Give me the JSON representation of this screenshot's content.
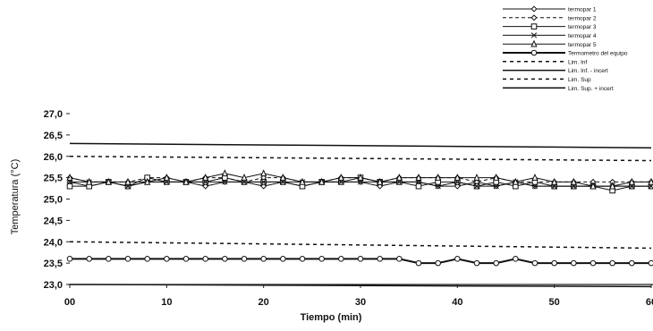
{
  "chart_data": {
    "type": "line",
    "xlabel": "Tiempo (min)",
    "ylabel": "Temperatura (°C)",
    "xlim": [
      0,
      60
    ],
    "ylim": [
      23.0,
      27.0
    ],
    "grid": false,
    "legend_position": "top-right",
    "x_ticks": [
      "00",
      "10",
      "20",
      "30",
      "40",
      "50",
      "60"
    ],
    "y_ticks": [
      "23,0",
      "23,5",
      "24,0",
      "24,5",
      "25,0",
      "25,5",
      "26,0",
      "26,5",
      "27,0"
    ],
    "x": [
      0,
      2,
      4,
      6,
      8,
      10,
      12,
      14,
      16,
      18,
      20,
      22,
      24,
      26,
      28,
      30,
      32,
      34,
      36,
      38,
      40,
      42,
      44,
      46,
      48,
      50,
      52,
      54,
      56,
      58,
      60
    ],
    "series": [
      {
        "name": "termopar 1",
        "marker": "diamond",
        "dash": "",
        "values": [
          25.4,
          25.3,
          25.4,
          25.3,
          25.4,
          25.4,
          25.4,
          25.3,
          25.4,
          25.4,
          25.3,
          25.4,
          25.3,
          25.4,
          25.4,
          25.4,
          25.3,
          25.4,
          25.4,
          25.3,
          25.3,
          25.4,
          25.3,
          25.4,
          25.3,
          25.3,
          25.3,
          25.3,
          25.3,
          25.3,
          25.3
        ]
      },
      {
        "name": "termopar 2",
        "marker": "diamond",
        "dash": "4,3",
        "values": [
          25.5,
          25.4,
          25.4,
          25.4,
          25.5,
          25.5,
          25.4,
          25.5,
          25.5,
          25.4,
          25.5,
          25.5,
          25.4,
          25.4,
          25.5,
          25.5,
          25.4,
          25.5,
          25.5,
          25.5,
          25.5,
          25.4,
          25.5,
          25.4,
          25.4,
          25.4,
          25.4,
          25.4,
          25.4,
          25.4,
          25.4
        ]
      },
      {
        "name": "termopar 3",
        "marker": "square",
        "dash": "",
        "values": [
          25.3,
          25.3,
          25.4,
          25.3,
          25.5,
          25.4,
          25.4,
          25.4,
          25.5,
          25.4,
          25.4,
          25.4,
          25.3,
          25.4,
          25.4,
          25.5,
          25.4,
          25.4,
          25.3,
          25.4,
          25.4,
          25.3,
          25.4,
          25.3,
          25.4,
          25.3,
          25.3,
          25.3,
          25.2,
          25.3,
          25.3
        ]
      },
      {
        "name": "termopar 4",
        "marker": "x",
        "dash": "",
        "values": [
          25.4,
          25.4,
          25.4,
          25.3,
          25.4,
          25.4,
          25.4,
          25.4,
          25.4,
          25.4,
          25.4,
          25.4,
          25.4,
          25.4,
          25.4,
          25.4,
          25.4,
          25.4,
          25.4,
          25.3,
          25.4,
          25.3,
          25.3,
          25.4,
          25.3,
          25.3,
          25.3,
          25.3,
          25.3,
          25.3,
          25.3
        ]
      },
      {
        "name": "termopar 5",
        "marker": "triangle",
        "dash": "",
        "values": [
          25.5,
          25.4,
          25.4,
          25.4,
          25.4,
          25.5,
          25.4,
          25.5,
          25.6,
          25.5,
          25.6,
          25.5,
          25.4,
          25.4,
          25.5,
          25.5,
          25.4,
          25.5,
          25.5,
          25.5,
          25.5,
          25.5,
          25.5,
          25.4,
          25.5,
          25.4,
          25.4,
          25.3,
          25.3,
          25.4,
          25.4
        ]
      },
      {
        "name": "Termometro del equipo",
        "marker": "circle",
        "dash": "",
        "width": 2,
        "values": [
          23.6,
          23.6,
          23.6,
          23.6,
          23.6,
          23.6,
          23.6,
          23.6,
          23.6,
          23.6,
          23.6,
          23.6,
          23.6,
          23.6,
          23.6,
          23.6,
          23.6,
          23.6,
          23.5,
          23.5,
          23.6,
          23.5,
          23.5,
          23.6,
          23.5,
          23.5,
          23.5,
          23.5,
          23.5,
          23.5,
          23.5
        ]
      }
    ],
    "limit_lines": [
      {
        "name": "Lim. Inf",
        "dash": "4,4",
        "width": 1.5,
        "values": [
          24.0,
          23.85
        ]
      },
      {
        "name": "Lim. Inf. - incert",
        "dash": "",
        "width": 1.5,
        "values": [
          23.0,
          22.95
        ]
      },
      {
        "name": "Lim. Sup",
        "dash": "4,4",
        "width": 1.5,
        "values": [
          26.0,
          25.9
        ]
      },
      {
        "name": "Lim. Sup. + incert",
        "dash": "",
        "width": 1.5,
        "values": [
          26.3,
          26.2
        ]
      }
    ]
  }
}
